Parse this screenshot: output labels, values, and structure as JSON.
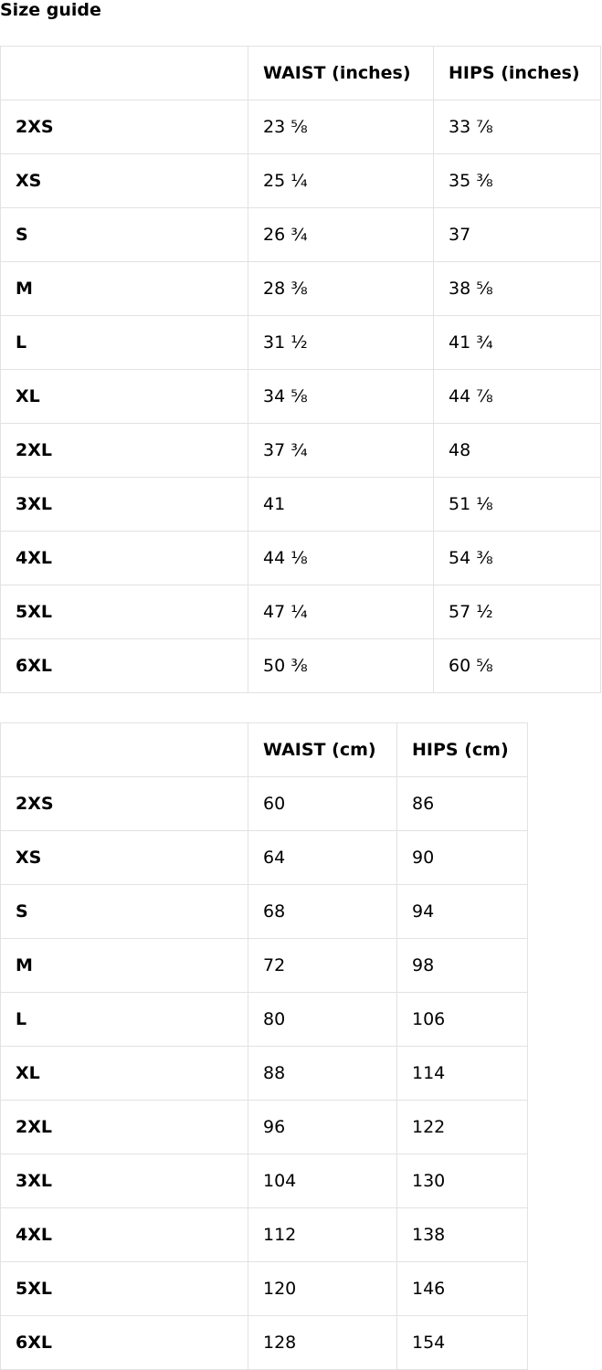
{
  "title": "Size guide",
  "tables": [
    {
      "headers": [
        "",
        "WAIST (inches)",
        "HIPS (inches)"
      ],
      "rows": [
        [
          "2XS",
          "23 ⅝",
          "33 ⅞"
        ],
        [
          "XS",
          "25 ¼",
          "35 ⅜"
        ],
        [
          "S",
          "26 ¾",
          "37"
        ],
        [
          "M",
          "28 ⅜",
          "38 ⅝"
        ],
        [
          "L",
          "31 ½",
          "41 ¾"
        ],
        [
          "XL",
          "34 ⅝",
          "44 ⅞"
        ],
        [
          "2XL",
          "37 ¾",
          "48"
        ],
        [
          "3XL",
          "41",
          "51 ⅛"
        ],
        [
          "4XL",
          "44 ⅛",
          "54 ⅜"
        ],
        [
          "5XL",
          "47 ¼",
          "57 ½"
        ],
        [
          "6XL",
          "50 ⅜",
          "60 ⅝"
        ]
      ]
    },
    {
      "headers": [
        "",
        "WAIST (cm)",
        "HIPS (cm)"
      ],
      "rows": [
        [
          "2XS",
          "60",
          "86"
        ],
        [
          "XS",
          "64",
          "90"
        ],
        [
          "S",
          "68",
          "94"
        ],
        [
          "M",
          "72",
          "98"
        ],
        [
          "L",
          "80",
          "106"
        ],
        [
          "XL",
          "88",
          "114"
        ],
        [
          "2XL",
          "96",
          "122"
        ],
        [
          "3XL",
          "104",
          "130"
        ],
        [
          "4XL",
          "112",
          "138"
        ],
        [
          "5XL",
          "120",
          "146"
        ],
        [
          "6XL",
          "128",
          "154"
        ]
      ]
    }
  ]
}
